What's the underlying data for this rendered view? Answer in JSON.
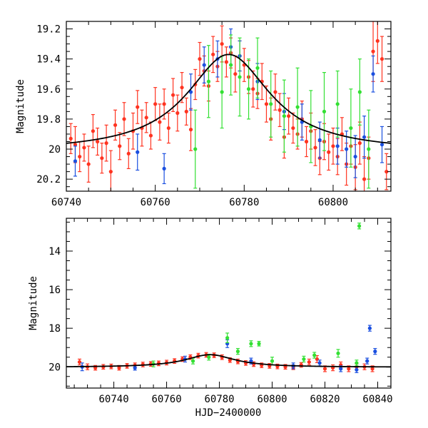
{
  "chart_data": [
    {
      "type": "scatter",
      "name": "top-panel",
      "xlabel": "",
      "ylabel": "Magnitude",
      "xlim": [
        60740,
        60813
      ],
      "ylim": [
        20.28,
        19.15
      ],
      "x_ticks": [
        60740,
        60760,
        60780,
        60800
      ],
      "x_tick_labels": [
        "60740",
        "60760",
        "60780",
        "60800"
      ],
      "y_ticks": [
        19.2,
        19.4,
        19.6,
        19.8,
        20.0,
        20.2
      ],
      "y_tick_labels": [
        "19.2",
        "19.4",
        "19.6",
        "19.8",
        "20",
        "20.2"
      ],
      "model_curve": {
        "baseline": 20.02,
        "peak": 19.37,
        "t0": 60776.5,
        "width": 11.5,
        "color": "#000000"
      },
      "series": [
        {
          "color": "#ff3320",
          "points": [
            [
              60741,
              19.93,
              0.1
            ],
            [
              60742,
              19.97,
              0.12
            ],
            [
              60743,
              20.05,
              0.1
            ],
            [
              60744,
              19.99,
              0.09
            ],
            [
              60745,
              20.1,
              0.12
            ],
            [
              60746,
              19.88,
              0.11
            ],
            [
              60747,
              19.95,
              0.09
            ],
            [
              60748,
              20.06,
              0.1
            ],
            [
              60749,
              19.96,
              0.12
            ],
            [
              60750,
              20.15,
              0.14
            ],
            [
              60751,
              19.84,
              0.1
            ],
            [
              60752,
              19.98,
              0.09
            ],
            [
              60753,
              19.8,
              0.11
            ],
            [
              60754,
              20.03,
              0.1
            ],
            [
              60755,
              19.88,
              0.12
            ],
            [
              60756,
              19.72,
              0.11
            ],
            [
              60757,
              19.86,
              0.12
            ],
            [
              60758,
              19.79,
              0.1
            ],
            [
              60759,
              19.91,
              0.09
            ],
            [
              60760,
              19.7,
              0.11
            ],
            [
              60761,
              19.82,
              0.12
            ],
            [
              60762,
              19.7,
              0.1
            ],
            [
              60763,
              19.86,
              0.1
            ],
            [
              60764,
              19.64,
              0.11
            ],
            [
              60765,
              19.76,
              0.12
            ],
            [
              60766,
              19.59,
              0.1
            ],
            [
              60767,
              19.75,
              0.09
            ],
            [
              60768,
              19.87,
              0.14
            ],
            [
              60769,
              19.57,
              0.1
            ],
            [
              60770,
              19.4,
              0.11
            ],
            [
              60771,
              19.48,
              0.1
            ],
            [
              60772,
              19.58,
              0.1
            ],
            [
              60773,
              19.37,
              0.12
            ],
            [
              60774,
              19.45,
              0.1
            ],
            [
              60775,
              19.3,
              0.12
            ],
            [
              60776,
              19.42,
              0.1
            ],
            [
              60777,
              19.36,
              0.1
            ],
            [
              60778,
              19.5,
              0.12
            ],
            [
              60779,
              19.38,
              0.1
            ],
            [
              60780,
              19.44,
              0.11
            ],
            [
              60781,
              19.52,
              0.11
            ],
            [
              60782,
              19.6,
              0.12
            ],
            [
              60783,
              19.63,
              0.1
            ],
            [
              60784,
              19.55,
              0.12
            ],
            [
              60785,
              19.7,
              0.12
            ],
            [
              60786,
              19.8,
              0.14
            ],
            [
              60787,
              19.62,
              0.12
            ],
            [
              60788,
              19.74,
              0.11
            ],
            [
              60789,
              19.92,
              0.14
            ],
            [
              60790,
              19.78,
              0.12
            ],
            [
              60791,
              19.86,
              0.1
            ],
            [
              60792,
              19.9,
              0.1
            ],
            [
              60793,
              19.8,
              0.12
            ],
            [
              60794,
              19.95,
              0.1
            ],
            [
              60795,
              19.88,
              0.12
            ],
            [
              60796,
              19.99,
              0.12
            ],
            [
              60797,
              20.06,
              0.11
            ],
            [
              60798,
              19.95,
              0.12
            ],
            [
              60799,
              20.02,
              0.12
            ],
            [
              60800,
              19.98,
              0.12
            ],
            [
              60801,
              20.05,
              0.12
            ],
            [
              60802,
              19.9,
              0.11
            ],
            [
              60803,
              20.1,
              0.14
            ],
            [
              60804,
              19.98,
              0.12
            ],
            [
              60805,
              20.12,
              0.15
            ],
            [
              60806,
              19.96,
              0.14
            ],
            [
              60807,
              20.2,
              0.15
            ],
            [
              60808,
              20.06,
              0.14
            ],
            [
              60809,
              19.35,
              0.2
            ],
            [
              60810,
              19.28,
              0.15
            ],
            [
              60811,
              19.4,
              0.15
            ],
            [
              60812,
              20.15,
              0.12
            ]
          ]
        },
        {
          "color": "#1a4fe0",
          "points": [
            [
              60742,
              20.08,
              0.1
            ],
            [
              60756,
              20.02,
              0.12
            ],
            [
              60762,
              20.13,
              0.1
            ],
            [
              60768,
              19.62,
              0.12
            ],
            [
              60771,
              19.44,
              0.12
            ],
            [
              60774,
              19.4,
              0.12
            ],
            [
              60777,
              19.32,
              0.12
            ],
            [
              60779,
              19.38,
              0.1
            ],
            [
              60783,
              19.55,
              0.12
            ],
            [
              60789,
              19.75,
              0.12
            ],
            [
              60793,
              19.82,
              0.12
            ],
            [
              60797,
              19.94,
              0.12
            ],
            [
              60801,
              19.98,
              0.12
            ],
            [
              60803,
              20.0,
              0.12
            ],
            [
              60805,
              20.05,
              0.14
            ],
            [
              60807,
              19.92,
              0.14
            ],
            [
              60809,
              19.5,
              0.12
            ],
            [
              60811,
              19.97,
              0.12
            ]
          ]
        },
        {
          "color": "#33e033",
          "points": [
            [
              60769,
              20.0,
              0.26
            ],
            [
              60772,
              19.55,
              0.24
            ],
            [
              60775,
              19.62,
              0.24
            ],
            [
              60777,
              19.44,
              0.2
            ],
            [
              60779,
              19.52,
              0.26
            ],
            [
              60781,
              19.6,
              0.2
            ],
            [
              60783,
              19.46,
              0.2
            ],
            [
              60786,
              19.7,
              0.22
            ],
            [
              60789,
              19.78,
              0.24
            ],
            [
              60792,
              19.72,
              0.26
            ],
            [
              60795,
              19.85,
              0.24
            ],
            [
              60798,
              19.75,
              0.26
            ],
            [
              60801,
              19.7,
              0.22
            ],
            [
              60804,
              19.86,
              0.26
            ],
            [
              60806,
              19.62,
              0.22
            ],
            [
              60808,
              20.0,
              0.26
            ]
          ]
        }
      ]
    },
    {
      "type": "scatter",
      "name": "bottom-panel",
      "xlabel": "HJD−2400000",
      "ylabel": "Magnitude",
      "xlim": [
        60722,
        60845
      ],
      "ylim": [
        21.1,
        12.3
      ],
      "x_ticks": [
        60740,
        60760,
        60780,
        60800,
        60820,
        60840
      ],
      "x_tick_labels": [
        "60740",
        "60760",
        "60780",
        "60800",
        "60820",
        "60840"
      ],
      "y_ticks": [
        14,
        16,
        18,
        20
      ],
      "y_tick_labels": [
        "14",
        "16",
        "18",
        "20"
      ],
      "model_curve": {
        "baseline": 20.02,
        "peak": 19.37,
        "t0": 60776.5,
        "width": 11.5,
        "color": "#000000"
      },
      "series": [
        {
          "color": "#ff3320",
          "points": [
            [
              60727,
              19.75,
              0.15
            ],
            [
              60730,
              20.0,
              0.15
            ],
            [
              60733,
              20.05,
              0.12
            ],
            [
              60736,
              20.0,
              0.12
            ],
            [
              60739,
              19.98,
              0.12
            ],
            [
              60742,
              20.05,
              0.12
            ],
            [
              60745,
              19.95,
              0.12
            ],
            [
              60748,
              19.92,
              0.12
            ],
            [
              60751,
              19.88,
              0.12
            ],
            [
              60754,
              19.85,
              0.12
            ],
            [
              60757,
              19.82,
              0.12
            ],
            [
              60760,
              19.78,
              0.12
            ],
            [
              60763,
              19.7,
              0.12
            ],
            [
              60766,
              19.6,
              0.12
            ],
            [
              60769,
              19.5,
              0.12
            ],
            [
              60772,
              19.42,
              0.12
            ],
            [
              60775,
              19.38,
              0.12
            ],
            [
              60778,
              19.4,
              0.12
            ],
            [
              60781,
              19.5,
              0.12
            ],
            [
              60784,
              19.65,
              0.12
            ],
            [
              60787,
              19.72,
              0.12
            ],
            [
              60790,
              19.8,
              0.12
            ],
            [
              60793,
              19.86,
              0.12
            ],
            [
              60796,
              19.92,
              0.12
            ],
            [
              60799,
              19.95,
              0.12
            ],
            [
              60802,
              19.98,
              0.12
            ],
            [
              60805,
              20.0,
              0.12
            ],
            [
              60808,
              20.02,
              0.12
            ],
            [
              60811,
              19.9,
              0.12
            ],
            [
              60814,
              19.75,
              0.15
            ],
            [
              60817,
              19.6,
              0.18
            ],
            [
              60820,
              20.1,
              0.15
            ],
            [
              60823,
              20.05,
              0.15
            ],
            [
              60826,
              19.9,
              0.15
            ],
            [
              60829,
              20.1,
              0.15
            ],
            [
              60832,
              20.0,
              0.15
            ],
            [
              60835,
              20.0,
              0.15
            ],
            [
              60838,
              20.1,
              0.15
            ]
          ]
        },
        {
          "color": "#1a4fe0",
          "points": [
            [
              60728,
              20.0,
              0.2
            ],
            [
              60748,
              20.05,
              0.12
            ],
            [
              60767,
              19.6,
              0.15
            ],
            [
              60783,
              18.8,
              0.2
            ],
            [
              60792,
              19.7,
              0.15
            ],
            [
              60808,
              19.95,
              0.15
            ],
            [
              60818,
              19.8,
              0.15
            ],
            [
              60826,
              20.1,
              0.15
            ],
            [
              60832,
              20.15,
              0.15
            ],
            [
              60836,
              19.7,
              0.15
            ],
            [
              60837,
              18.0,
              0.15
            ],
            [
              60839,
              19.2,
              0.15
            ]
          ]
        },
        {
          "color": "#33e033",
          "points": [
            [
              60755,
              19.85,
              0.15
            ],
            [
              60770,
              19.7,
              0.15
            ],
            [
              60776,
              19.5,
              0.15
            ],
            [
              60783,
              18.5,
              0.25
            ],
            [
              60787,
              19.2,
              0.15
            ],
            [
              60792,
              18.8,
              0.15
            ],
            [
              60795,
              18.8,
              0.12
            ],
            [
              60800,
              19.7,
              0.2
            ],
            [
              60812,
              19.6,
              0.15
            ],
            [
              60816,
              19.4,
              0.15
            ],
            [
              60825,
              19.3,
              0.2
            ],
            [
              60832,
              19.8,
              0.15
            ],
            [
              60833,
              12.7,
              0.15
            ]
          ]
        }
      ]
    }
  ]
}
